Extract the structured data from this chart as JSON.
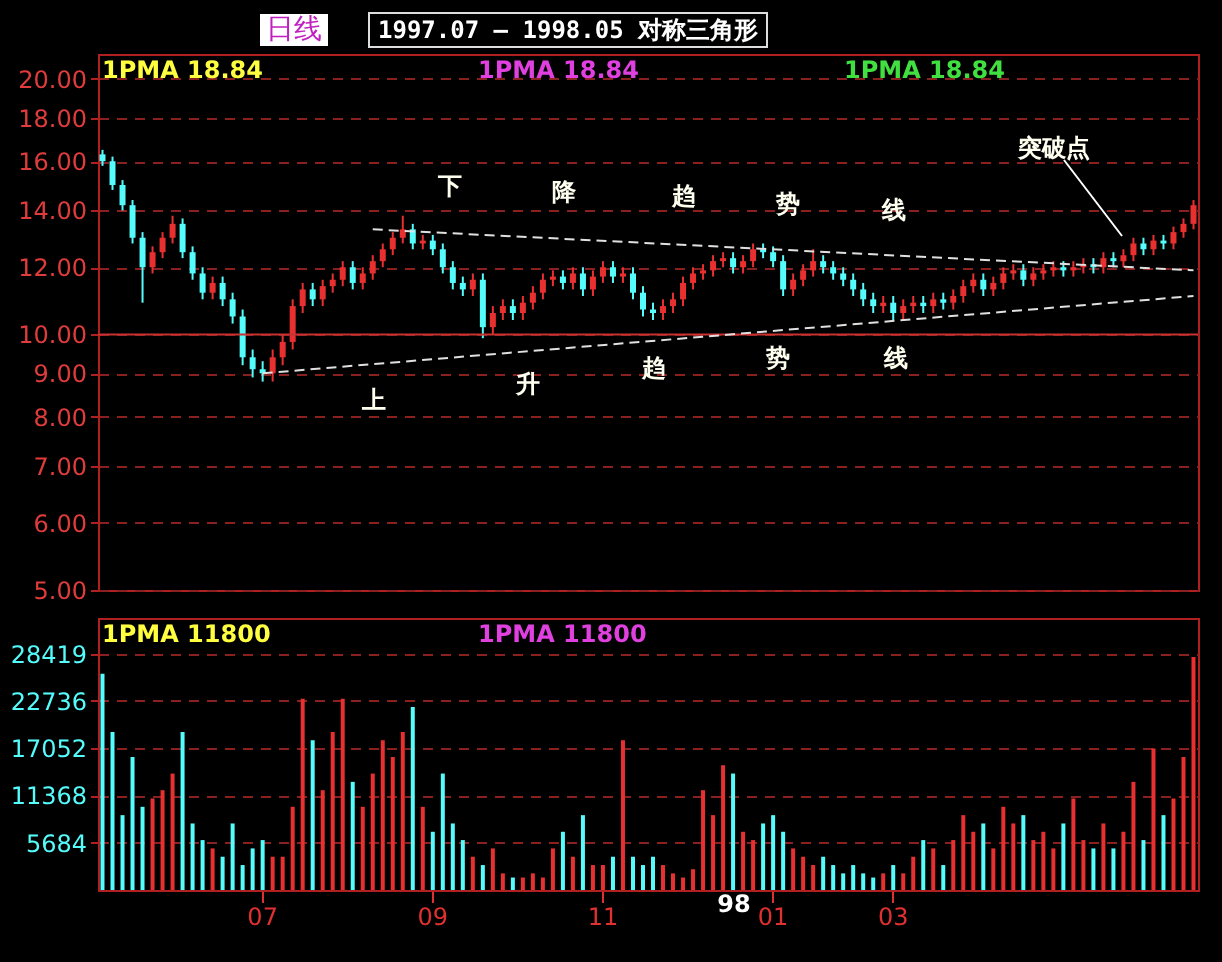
{
  "chart_data": [
    {
      "type": "candlestick",
      "title": "1997.07 — 1998.05 对称三角形",
      "subtitle": "日线",
      "categories": [
        null,
        null,
        null,
        null,
        null,
        null,
        null,
        null,
        null,
        null,
        null,
        null,
        null,
        null,
        null,
        null,
        "07",
        null,
        null,
        null,
        null,
        null,
        null,
        null,
        null,
        null,
        null,
        null,
        null,
        null,
        null,
        null,
        null,
        "09",
        null,
        null,
        null,
        null,
        null,
        null,
        null,
        null,
        null,
        null,
        null,
        null,
        null,
        null,
        null,
        null,
        "11",
        null,
        null,
        null,
        null,
        null,
        null,
        null,
        null,
        null,
        null,
        null,
        null,
        null,
        null,
        null,
        null,
        "01",
        null,
        null,
        null,
        null,
        null,
        null,
        null,
        null,
        null,
        null,
        null,
        "03",
        null,
        null,
        null,
        null,
        null,
        null,
        null,
        null,
        null,
        null,
        null,
        null,
        null,
        null,
        null,
        null,
        null,
        null,
        null,
        null,
        null,
        null,
        null,
        null,
        null,
        null,
        null,
        null,
        null,
        null
      ],
      "ohlc": [
        [
          16.3,
          16.5,
          15.8,
          16.0
        ],
        [
          16.0,
          16.2,
          14.8,
          15.0
        ],
        [
          15.0,
          15.2,
          14.0,
          14.2
        ],
        [
          14.2,
          14.4,
          12.8,
          13.0
        ],
        [
          13.0,
          13.2,
          10.9,
          12.0
        ],
        [
          12.0,
          12.7,
          11.8,
          12.5
        ],
        [
          12.5,
          13.2,
          12.3,
          13.0
        ],
        [
          13.0,
          13.8,
          12.8,
          13.5
        ],
        [
          13.5,
          13.7,
          12.3,
          12.5
        ],
        [
          12.5,
          12.7,
          11.6,
          11.8
        ],
        [
          11.8,
          12.0,
          11.0,
          11.2
        ],
        [
          11.2,
          11.7,
          11.0,
          11.5
        ],
        [
          11.5,
          11.7,
          10.8,
          11.0
        ],
        [
          11.0,
          11.2,
          10.3,
          10.5
        ],
        [
          10.5,
          10.7,
          9.2,
          9.4
        ],
        [
          9.4,
          9.6,
          8.9,
          9.1
        ],
        [
          9.1,
          9.3,
          8.8,
          9.0
        ],
        [
          9.0,
          9.6,
          8.8,
          9.4
        ],
        [
          9.4,
          10.0,
          9.2,
          9.8
        ],
        [
          9.8,
          11.0,
          9.6,
          10.8
        ],
        [
          10.8,
          11.5,
          10.6,
          11.3
        ],
        [
          11.3,
          11.5,
          10.8,
          11.0
        ],
        [
          11.0,
          11.6,
          10.8,
          11.4
        ],
        [
          11.4,
          11.8,
          11.2,
          11.6
        ],
        [
          11.6,
          12.2,
          11.4,
          12.0
        ],
        [
          12.0,
          12.2,
          11.3,
          11.5
        ],
        [
          11.5,
          12.0,
          11.3,
          11.8
        ],
        [
          11.8,
          12.4,
          11.6,
          12.2
        ],
        [
          12.2,
          12.8,
          12.0,
          12.6
        ],
        [
          12.6,
          13.2,
          12.4,
          13.0
        ],
        [
          13.0,
          13.8,
          12.8,
          13.3
        ],
        [
          13.3,
          13.5,
          12.6,
          12.8
        ],
        [
          12.8,
          13.1,
          12.6,
          12.9
        ],
        [
          12.9,
          13.1,
          12.4,
          12.6
        ],
        [
          12.6,
          12.8,
          11.8,
          12.0
        ],
        [
          12.0,
          12.2,
          11.3,
          11.5
        ],
        [
          11.5,
          11.7,
          11.1,
          11.3
        ],
        [
          11.3,
          11.8,
          11.1,
          11.6
        ],
        [
          11.6,
          11.8,
          9.9,
          10.2
        ],
        [
          10.2,
          10.8,
          10.0,
          10.6
        ],
        [
          10.6,
          11.0,
          10.4,
          10.8
        ],
        [
          10.8,
          11.0,
          10.4,
          10.6
        ],
        [
          10.6,
          11.1,
          10.4,
          10.9
        ],
        [
          10.9,
          11.4,
          10.7,
          11.2
        ],
        [
          11.2,
          11.8,
          11.0,
          11.6
        ],
        [
          11.6,
          11.9,
          11.4,
          11.7
        ],
        [
          11.7,
          11.9,
          11.3,
          11.5
        ],
        [
          11.5,
          12.0,
          11.3,
          11.8
        ],
        [
          11.8,
          12.0,
          11.1,
          11.3
        ],
        [
          11.3,
          11.9,
          11.1,
          11.7
        ],
        [
          11.7,
          12.2,
          11.5,
          12.0
        ],
        [
          12.0,
          12.2,
          11.5,
          11.7
        ],
        [
          11.7,
          12.0,
          11.5,
          11.8
        ],
        [
          11.8,
          12.0,
          11.0,
          11.2
        ],
        [
          11.2,
          11.4,
          10.5,
          10.7
        ],
        [
          10.7,
          10.9,
          10.4,
          10.6
        ],
        [
          10.6,
          11.0,
          10.4,
          10.8
        ],
        [
          10.8,
          11.2,
          10.6,
          11.0
        ],
        [
          11.0,
          11.7,
          10.8,
          11.5
        ],
        [
          11.5,
          12.0,
          11.3,
          11.8
        ],
        [
          11.8,
          12.1,
          11.6,
          11.9
        ],
        [
          11.9,
          12.4,
          11.7,
          12.2
        ],
        [
          12.2,
          12.5,
          12.0,
          12.3
        ],
        [
          12.3,
          12.5,
          11.8,
          12.0
        ],
        [
          12.0,
          12.4,
          11.8,
          12.2
        ],
        [
          12.2,
          12.8,
          12.0,
          12.6
        ],
        [
          12.6,
          12.8,
          12.3,
          12.5
        ],
        [
          12.5,
          12.7,
          12.0,
          12.2
        ],
        [
          12.2,
          12.4,
          11.1,
          11.3
        ],
        [
          11.3,
          11.8,
          11.1,
          11.6
        ],
        [
          11.6,
          12.1,
          11.4,
          11.9
        ],
        [
          11.9,
          12.6,
          11.7,
          12.2
        ],
        [
          12.2,
          12.4,
          11.8,
          12.0
        ],
        [
          12.0,
          12.2,
          11.6,
          11.8
        ],
        [
          11.8,
          12.0,
          11.4,
          11.6
        ],
        [
          11.6,
          11.8,
          11.1,
          11.3
        ],
        [
          11.3,
          11.5,
          10.8,
          11.0
        ],
        [
          11.0,
          11.2,
          10.6,
          10.8
        ],
        [
          10.8,
          11.1,
          10.6,
          10.9
        ],
        [
          10.9,
          11.1,
          10.4,
          10.6
        ],
        [
          10.6,
          11.0,
          10.4,
          10.8
        ],
        [
          10.8,
          11.1,
          10.6,
          10.9
        ],
        [
          10.9,
          11.1,
          10.6,
          10.8
        ],
        [
          10.8,
          11.2,
          10.6,
          11.0
        ],
        [
          11.0,
          11.2,
          10.7,
          10.9
        ],
        [
          10.9,
          11.3,
          10.7,
          11.1
        ],
        [
          11.1,
          11.6,
          10.9,
          11.4
        ],
        [
          11.4,
          11.8,
          11.2,
          11.6
        ],
        [
          11.6,
          11.8,
          11.1,
          11.3
        ],
        [
          11.3,
          11.7,
          11.1,
          11.5
        ],
        [
          11.5,
          12.0,
          11.3,
          11.8
        ],
        [
          11.8,
          12.1,
          11.6,
          11.9
        ],
        [
          11.9,
          12.1,
          11.4,
          11.6
        ],
        [
          11.6,
          12.0,
          11.4,
          11.8
        ],
        [
          11.8,
          12.1,
          11.6,
          11.9
        ],
        [
          11.9,
          12.2,
          11.7,
          12.0
        ],
        [
          12.0,
          12.2,
          11.7,
          11.9
        ],
        [
          11.9,
          12.2,
          11.7,
          12.0
        ],
        [
          12.0,
          12.3,
          11.8,
          12.1
        ],
        [
          12.1,
          12.3,
          11.8,
          12.0
        ],
        [
          12.0,
          12.5,
          11.8,
          12.3
        ],
        [
          12.3,
          12.5,
          12.0,
          12.2
        ],
        [
          12.2,
          12.6,
          12.0,
          12.4
        ],
        [
          12.4,
          13.0,
          12.2,
          12.8
        ],
        [
          12.8,
          13.0,
          12.4,
          12.6
        ],
        [
          12.6,
          13.1,
          12.4,
          12.9
        ],
        [
          12.9,
          13.1,
          12.6,
          12.8
        ],
        [
          12.8,
          13.4,
          12.6,
          13.2
        ],
        [
          13.2,
          13.7,
          13.0,
          13.5
        ],
        [
          13.5,
          14.4,
          13.3,
          14.2
        ]
      ],
      "colors": [
        "#54fcfc",
        "#54fcfc",
        "#54fcfc",
        "#54fcfc",
        "#54fcfc",
        "#e83030",
        "#e83030",
        "#e83030",
        "#54fcfc",
        "#54fcfc",
        "#54fcfc",
        "#e83030",
        "#54fcfc",
        "#54fcfc",
        "#54fcfc",
        "#54fcfc",
        "#54fcfc",
        "#e83030",
        "#e83030",
        "#e83030",
        "#e83030",
        "#54fcfc",
        "#e83030",
        "#e83030",
        "#e83030",
        "#54fcfc",
        "#e83030",
        "#e83030",
        "#e83030",
        "#e83030",
        "#e83030",
        "#54fcfc",
        "#e83030",
        "#54fcfc",
        "#54fcfc",
        "#54fcfc",
        "#54fcfc",
        "#e83030",
        "#54fcfc",
        "#e83030",
        "#e83030",
        "#54fcfc",
        "#e83030",
        "#e83030",
        "#e83030",
        "#e83030",
        "#54fcfc",
        "#e83030",
        "#54fcfc",
        "#e83030",
        "#e83030",
        "#54fcfc",
        "#e83030",
        "#54fcfc",
        "#54fcfc",
        "#54fcfc",
        "#e83030",
        "#e83030",
        "#e83030",
        "#e83030",
        "#e83030",
        "#e83030",
        "#e83030",
        "#54fcfc",
        "#e83030",
        "#e83030",
        "#54fcfc",
        "#54fcfc",
        "#54fcfc",
        "#e83030",
        "#e83030",
        "#e83030",
        "#54fcfc",
        "#54fcfc",
        "#54fcfc",
        "#54fcfc",
        "#54fcfc",
        "#54fcfc",
        "#e83030",
        "#54fcfc",
        "#e83030",
        "#e83030",
        "#54fcfc",
        "#e83030",
        "#54fcfc",
        "#e83030",
        "#e83030",
        "#e83030",
        "#54fcfc",
        "#e83030",
        "#e83030",
        "#e83030",
        "#54fcfc",
        "#e83030",
        "#e83030",
        "#e83030",
        "#54fcfc",
        "#e83030",
        "#e83030",
        "#54fcfc",
        "#e83030",
        "#54fcfc",
        "#e83030",
        "#e83030",
        "#54fcfc",
        "#e83030",
        "#54fcfc",
        "#e83030",
        "#e83030",
        "#e83030"
      ],
      "series": [
        {
          "type": "line",
          "color": "#e0e0e0",
          "line_style": "dashed",
          "values": [
            null,
            null,
            null,
            null,
            null,
            null,
            null,
            null,
            null,
            null,
            null,
            null,
            null,
            null,
            null,
            null,
            null,
            null,
            null,
            null,
            null,
            null,
            null,
            null,
            null,
            null,
            null,
            13.3,
            null,
            null,
            null,
            null,
            null,
            null,
            null,
            null,
            null,
            null,
            null,
            null,
            null,
            null,
            null,
            null,
            null,
            null,
            null,
            null,
            null,
            null,
            null,
            null,
            null,
            null,
            null,
            null,
            null,
            null,
            null,
            null,
            null,
            null,
            null,
            null,
            null,
            null,
            null,
            null,
            null,
            null,
            null,
            null,
            null,
            null,
            null,
            null,
            null,
            null,
            null,
            null,
            null,
            null,
            null,
            null,
            null,
            null,
            null,
            null,
            null,
            null,
            null,
            null,
            null,
            null,
            null,
            null,
            null,
            null,
            null,
            null,
            null,
            null,
            null,
            null,
            null,
            null,
            null,
            null,
            null,
            11.9
          ]
        },
        {
          "type": "line",
          "color": "#e0e0e0",
          "line_style": "dashed",
          "values": [
            null,
            null,
            null,
            null,
            null,
            null,
            null,
            null,
            null,
            null,
            null,
            null,
            null,
            null,
            null,
            null,
            9.0,
            null,
            null,
            null,
            null,
            null,
            null,
            null,
            null,
            null,
            null,
            null,
            null,
            null,
            null,
            null,
            null,
            null,
            null,
            null,
            null,
            null,
            null,
            null,
            null,
            null,
            null,
            null,
            null,
            null,
            null,
            null,
            null,
            null,
            null,
            null,
            null,
            null,
            null,
            null,
            null,
            null,
            null,
            null,
            null,
            null,
            null,
            null,
            null,
            null,
            null,
            null,
            null,
            null,
            null,
            null,
            null,
            null,
            null,
            null,
            null,
            null,
            null,
            null,
            null,
            null,
            null,
            null,
            null,
            null,
            null,
            null,
            null,
            null,
            null,
            null,
            null,
            null,
            null,
            null,
            null,
            null,
            null,
            null,
            null,
            null,
            null,
            null,
            null,
            null,
            null,
            null,
            null,
            11.1
          ]
        }
      ],
      "ylim": [
        5,
        21.4
      ],
      "log": true,
      "grid": "y",
      "tick_labels": "y",
      "yticks": [
        {
          "value": 5,
          "label": "5.00"
        },
        {
          "value": 6,
          "label": "6.00"
        },
        {
          "value": 7,
          "label": "7.00"
        },
        {
          "value": 8,
          "label": "8.00"
        },
        {
          "value": 9,
          "label": "9.00"
        },
        {
          "value": 10,
          "label": "10.00"
        },
        {
          "value": 12,
          "label": "12.00"
        },
        {
          "value": 14,
          "label": "14.00"
        },
        {
          "value": 16,
          "label": "16.00"
        },
        {
          "value": 18,
          "label": "18.00"
        },
        {
          "value": 20,
          "label": "20.00"
        }
      ],
      "ref_lines": [
        {
          "axis": "y",
          "value": 10,
          "color": "#c83232",
          "line_style": "solid"
        }
      ],
      "annotations": [
        "下降趋势线",
        "上升趋势线",
        "突破点",
        "1PMA  18.84",
        "1PMA  18.84",
        "1PMA  18.84"
      ]
    },
    {
      "type": "bar",
      "categories": [
        null,
        null,
        null,
        null,
        null,
        null,
        null,
        null,
        null,
        null,
        null,
        null,
        null,
        null,
        null,
        null,
        "07",
        null,
        null,
        null,
        null,
        null,
        null,
        null,
        null,
        null,
        null,
        null,
        null,
        null,
        null,
        null,
        null,
        "09",
        null,
        null,
        null,
        null,
        null,
        null,
        null,
        null,
        null,
        null,
        null,
        null,
        null,
        null,
        null,
        null,
        "11",
        null,
        null,
        null,
        null,
        null,
        null,
        null,
        null,
        null,
        null,
        null,
        null,
        null,
        null,
        null,
        null,
        "01",
        null,
        null,
        null,
        null,
        null,
        null,
        null,
        null,
        null,
        null,
        null,
        "03",
        null,
        null,
        null,
        null,
        null,
        null,
        null,
        null,
        null,
        null,
        null,
        null,
        null,
        null,
        null,
        null,
        null,
        null,
        null,
        null,
        null,
        null,
        null,
        null,
        null,
        null,
        null,
        null,
        null,
        null
      ],
      "values": [
        26000,
        19000,
        9000,
        16000,
        10000,
        11000,
        12000,
        14000,
        19000,
        8000,
        6000,
        5000,
        4000,
        8000,
        3000,
        5000,
        6000,
        4000,
        4000,
        10000,
        23000,
        18000,
        12000,
        19000,
        23000,
        13000,
        10000,
        14000,
        18000,
        16000,
        19000,
        22000,
        10000,
        7000,
        14000,
        8000,
        6000,
        4000,
        3000,
        5000,
        2000,
        1500,
        1500,
        2000,
        1500,
        5000,
        7000,
        4000,
        9000,
        3000,
        3000,
        4000,
        18000,
        4000,
        3000,
        4000,
        3000,
        2000,
        1500,
        2500,
        12000,
        9000,
        15000,
        14000,
        7000,
        6000,
        8000,
        9000,
        7000,
        5000,
        4000,
        3000,
        4000,
        3000,
        2000,
        3000,
        2000,
        1500,
        2000,
        3000,
        2000,
        4000,
        6000,
        5000,
        3000,
        6000,
        9000,
        7000,
        8000,
        5000,
        10000,
        8000,
        9000,
        6000,
        7000,
        5000,
        8000,
        11000,
        6000,
        5000,
        8000,
        5000,
        7000,
        13000,
        6000,
        17000,
        9000,
        11000,
        16000,
        28000
      ],
      "colors": [
        "#54fcfc",
        "#54fcfc",
        "#54fcfc",
        "#54fcfc",
        "#54fcfc",
        "#e83030",
        "#e83030",
        "#e83030",
        "#54fcfc",
        "#54fcfc",
        "#54fcfc",
        "#e83030",
        "#54fcfc",
        "#54fcfc",
        "#54fcfc",
        "#54fcfc",
        "#54fcfc",
        "#e83030",
        "#e83030",
        "#e83030",
        "#e83030",
        "#54fcfc",
        "#e83030",
        "#e83030",
        "#e83030",
        "#54fcfc",
        "#e83030",
        "#e83030",
        "#e83030",
        "#e83030",
        "#e83030",
        "#54fcfc",
        "#e83030",
        "#54fcfc",
        "#54fcfc",
        "#54fcfc",
        "#54fcfc",
        "#e83030",
        "#54fcfc",
        "#e83030",
        "#e83030",
        "#54fcfc",
        "#e83030",
        "#e83030",
        "#e83030",
        "#e83030",
        "#54fcfc",
        "#e83030",
        "#54fcfc",
        "#e83030",
        "#e83030",
        "#54fcfc",
        "#e83030",
        "#54fcfc",
        "#54fcfc",
        "#54fcfc",
        "#e83030",
        "#e83030",
        "#e83030",
        "#e83030",
        "#e83030",
        "#e83030",
        "#e83030",
        "#54fcfc",
        "#e83030",
        "#e83030",
        "#54fcfc",
        "#54fcfc",
        "#54fcfc",
        "#e83030",
        "#e83030",
        "#e83030",
        "#54fcfc",
        "#54fcfc",
        "#54fcfc",
        "#54fcfc",
        "#54fcfc",
        "#54fcfc",
        "#e83030",
        "#54fcfc",
        "#e83030",
        "#e83030",
        "#54fcfc",
        "#e83030",
        "#54fcfc",
        "#e83030",
        "#e83030",
        "#e83030",
        "#54fcfc",
        "#e83030",
        "#e83030",
        "#e83030",
        "#54fcfc",
        "#e83030",
        "#e83030",
        "#e83030",
        "#54fcfc",
        "#e83030",
        "#e83030",
        "#54fcfc",
        "#e83030",
        "#54fcfc",
        "#e83030",
        "#e83030",
        "#54fcfc",
        "#e83030",
        "#54fcfc",
        "#e83030",
        "#e83030",
        "#e83030"
      ],
      "ylim": [
        0,
        32700
      ],
      "yticks": [
        5684,
        11368,
        17052,
        22736,
        28419
      ],
      "grid": "y",
      "annotations": [
        "1PMA  11800",
        "1PMA  11800",
        "98"
      ]
    }
  ]
}
